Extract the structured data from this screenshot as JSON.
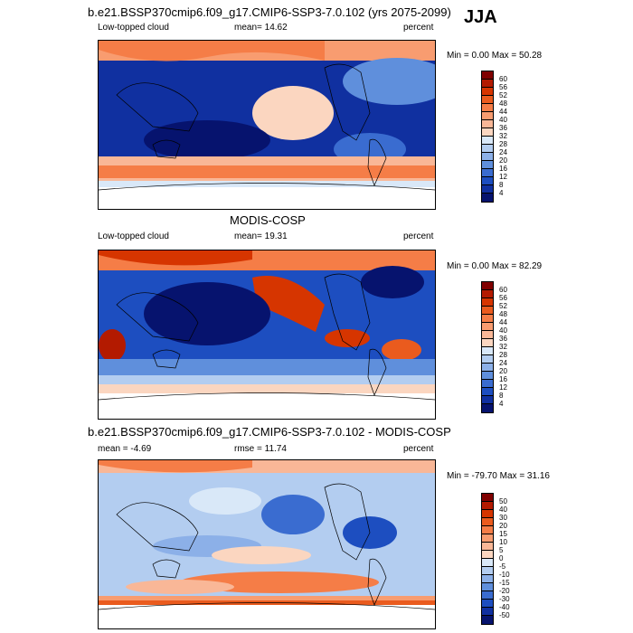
{
  "panels": [
    {
      "title": "b.e21.BSSP370cmip6.f09_g17.CMIP6-SSP3-7.0.102 (yrs 2075-2099)",
      "left_label": "Low-topped cloud",
      "center_label": "mean=  14.62",
      "right_label": "percent",
      "minmax": "Min =   0.00 Max =  50.28",
      "colorbar_labels": [
        "60",
        "56",
        "52",
        "48",
        "44",
        "40",
        "36",
        "32",
        "28",
        "24",
        "20",
        "16",
        "12",
        "8",
        "4"
      ]
    },
    {
      "title": "MODIS-COSP",
      "left_label": "Low-topped cloud",
      "center_label": "mean=  19.31",
      "right_label": "percent",
      "minmax": "Min =   0.00 Max =  82.29",
      "colorbar_labels": [
        "60",
        "56",
        "52",
        "48",
        "44",
        "40",
        "36",
        "32",
        "28",
        "24",
        "20",
        "16",
        "12",
        "8",
        "4"
      ]
    },
    {
      "title": "b.e21.BSSP370cmip6.f09_g17.CMIP6-SSP3-7.0.102 - MODIS-COSP",
      "left_label": "mean =  -4.69",
      "center_label": "rmse =  11.74",
      "right_label": "percent",
      "minmax": "Min = -79.70 Max =  31.16",
      "colorbar_labels": [
        "50",
        "40",
        "30",
        "20",
        "15",
        "10",
        "5",
        "0",
        "-5",
        "-10",
        "-15",
        "-20",
        "-30",
        "-40",
        "-50"
      ]
    }
  ],
  "season": "JJA",
  "colors": {
    "levels": [
      "#800000",
      "#b31a00",
      "#d63500",
      "#ea5b1e",
      "#f57d47",
      "#f89c70",
      "#f9b797",
      "#fbd6c0",
      "#d9e8f8",
      "#b3cdf0",
      "#8cb0e8",
      "#5f8fdc",
      "#3a6cd0",
      "#1d4ec0",
      "#1030a0",
      "#06136e"
    ]
  }
}
